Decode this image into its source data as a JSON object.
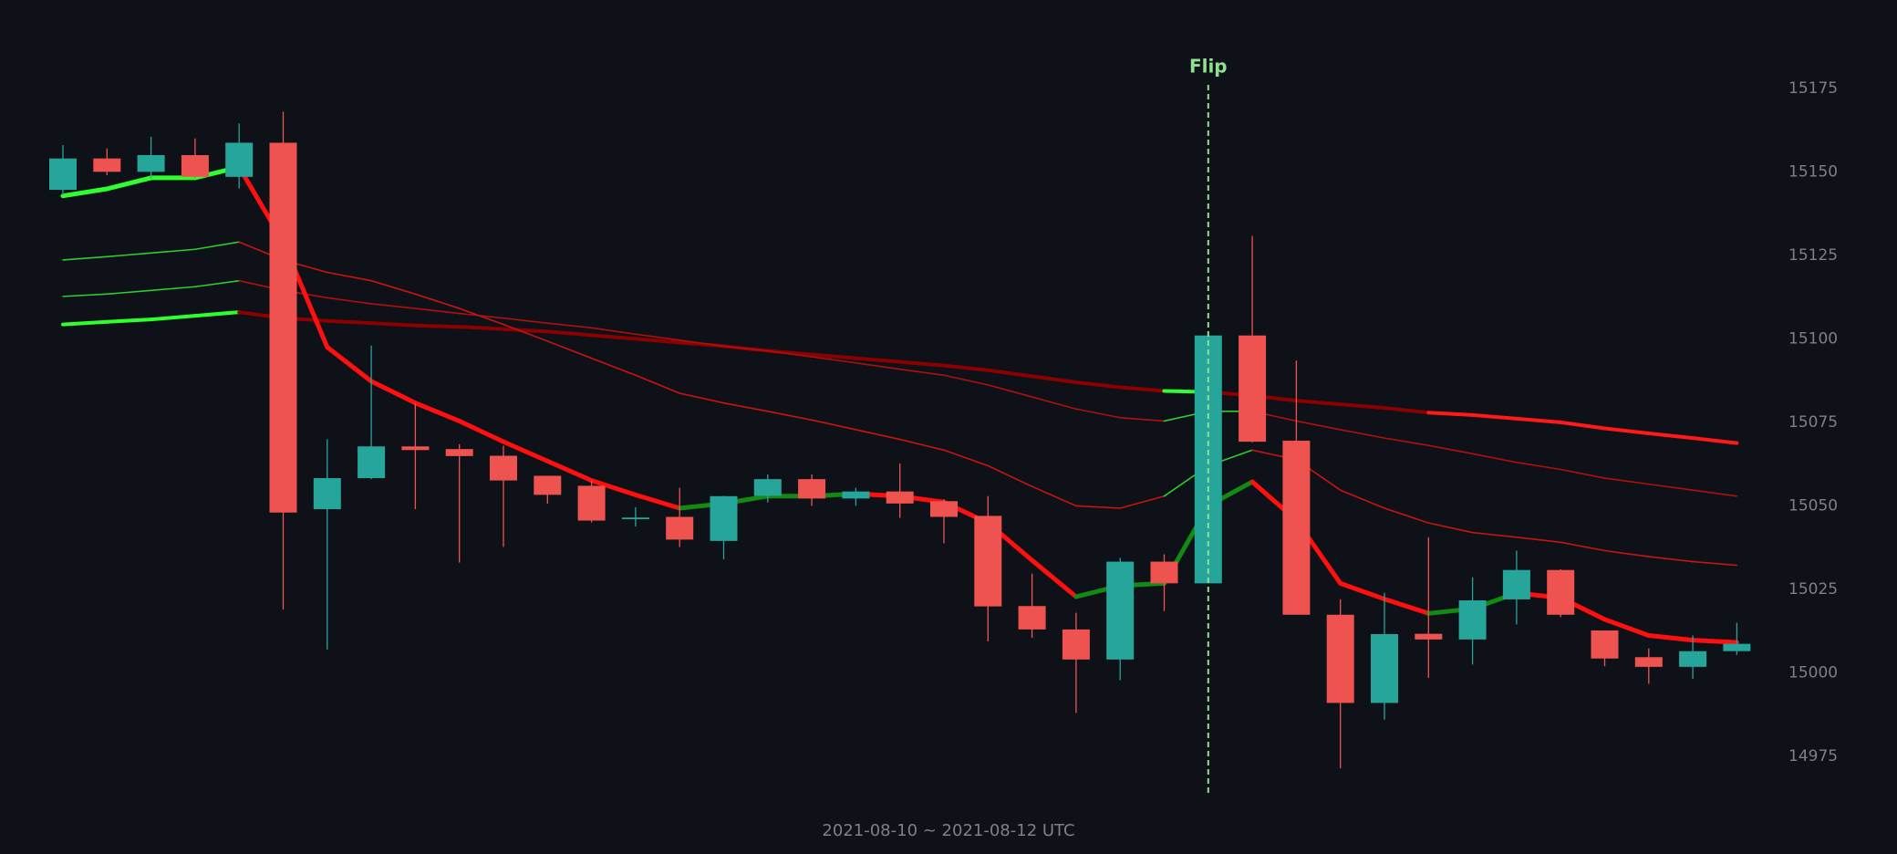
{
  "chart_data": {
    "type": "candlestick",
    "x_label": "2021-08-10 ~ 2021-08-12 UTC",
    "ylim": [
      14975,
      15175
    ],
    "yticks": [
      14975,
      15000,
      15025,
      15050,
      15075,
      15100,
      15125,
      15150,
      15175
    ],
    "up_color": "#26a69a",
    "down_color": "#ef5350",
    "signal_color": "#8fe08f",
    "open": [
      15144.6,
      15154,
      15150,
      15155,
      15148.5,
      15158.7,
      15049,
      15058.3,
      15067.8,
      15067,
      15065,
      15059,
      15056,
      15046,
      15046.7,
      15039.5,
      15053,
      15058,
      15052.2,
      15054.3,
      15051.4,
      15047,
      15020,
      15013,
      15004,
      15033.3,
      15026.8,
      15101,
      15069.5,
      15017.4,
      14991,
      15011.7,
      15010,
      15022,
      15030.8,
      15012.7,
      15004.7,
      15001.8,
      15006.5
    ],
    "high": [
      15158,
      15157,
      15160.5,
      15160,
      15164.5,
      15168,
      15070,
      15098,
      15080.8,
      15068.5,
      15068,
      15059,
      15057.6,
      15049.6,
      15055.4,
      15053,
      15059.4,
      15059.4,
      15055.4,
      15062.7,
      15052,
      15052.9,
      15029.7,
      15018,
      15034.4,
      15035.5,
      15101,
      15130.8,
      15093.5,
      15022,
      15024,
      15040.6,
      15028.6,
      15036.6,
      15031,
      15012.7,
      15007.3,
      15011.2,
      15015
    ],
    "low": [
      15143,
      15149,
      15148,
      15148,
      15145,
      15019,
      15007,
      15058,
      15049,
      15033,
      15037.7,
      15050.7,
      15045,
      15043.8,
      15037.7,
      15034,
      15051,
      15050,
      15050,
      15046.4,
      15038.8,
      15009.4,
      15010.5,
      14988,
      14997.8,
      15018.5,
      15026.8,
      15069,
      15017.4,
      14971.4,
      14986,
      14998.5,
      15002.5,
      15014.5,
      15016.7,
      15002,
      14996.7,
      14998.2,
      15005.4
    ],
    "close": [
      15154,
      15150,
      15155,
      15148.5,
      15158.7,
      15048,
      15058.3,
      15067.8,
      15066.7,
      15064.9,
      15057.6,
      15053.3,
      15045.6,
      15046.5,
      15039.9,
      15052.9,
      15058,
      15052.2,
      15054.3,
      15050.7,
      15046.7,
      15019.9,
      15013,
      15004,
      15033.3,
      15026.8,
      15101,
      15069.2,
      15017.4,
      14991,
      15011.6,
      15010,
      15021.7,
      15030.8,
      15017.4,
      15004.3,
      15001.8,
      15006.5,
      15008.7
    ],
    "signals": [
      null,
      null,
      null,
      null,
      null,
      null,
      null,
      null,
      null,
      null,
      null,
      null,
      null,
      null,
      null,
      null,
      null,
      null,
      null,
      null,
      null,
      null,
      null,
      null,
      null,
      null,
      "Flip",
      null,
      null,
      null,
      null,
      null,
      null,
      null,
      null,
      null,
      null,
      null,
      null
    ],
    "ribbon": [
      {
        "values": [
          15142.8,
          15144.9,
          15148.2,
          15148.2,
          15151.4,
          15129,
          15097.5,
          15087.3,
          15080.8,
          15075.4,
          15069.2,
          15063.4,
          15057.6,
          15053.3,
          15049.3,
          15050.7,
          15052.9,
          15052.9,
          15053.6,
          15052.9,
          15051.1,
          15044.9,
          15033.7,
          15022.8,
          15026.1,
          15026.8,
          15050,
          15057.2,
          15045.7,
          15026.8,
          15022.1,
          15017.8,
          15019.2,
          15023.9,
          15022.5,
          15016,
          15011.2,
          15009.8,
          15009.1
        ],
        "segment_colors": [
          "#2eff2e",
          "#2eff2e",
          "#2eff2e",
          "#2eff2e",
          "#ff1010",
          "#ff1010",
          "#ff1010",
          "#ff1010",
          "#ff1010",
          "#ff1010",
          "#ff1010",
          "#ff1010",
          "#ff1010",
          "#ff1010",
          "#138a13",
          "#138a13",
          "#138a13",
          "#138a13",
          "#ff1010",
          "#ff1010",
          "#ff1010",
          "#ff1010",
          "#ff1010",
          "#138a13",
          "#138a13",
          "#138a13",
          "#138a13",
          "#ff1010",
          "#ff1010",
          "#ff1010",
          "#ff1010",
          "#138a13",
          "#138a13",
          "#ff1010",
          "#ff1010",
          "#ff1010",
          "#ff1010",
          "#ff1010"
        ]
      },
      {
        "values": [
          15123.6,
          15124.6,
          15125.7,
          15126.8,
          15129,
          15123.6,
          15119.9,
          15117.4,
          15113.4,
          15109.1,
          15104.3,
          15099.3,
          15094.2,
          15089.1,
          15083.7,
          15080.8,
          15078.3,
          15075.7,
          15072.8,
          15069.9,
          15066.7,
          15062,
          15055.8,
          15050,
          15049.3,
          15052.9,
          15062,
          15066.7,
          15063.8,
          15054.7,
          15049.3,
          15044.9,
          15042,
          15040.6,
          15039.1,
          15036.6,
          15034.8,
          15033.3,
          15032.2
        ],
        "segment_colors": [
          "#2ecc2e",
          "#2ecc2e",
          "#2ecc2e",
          "#2ecc2e",
          "#c81414",
          "#c81414",
          "#c81414",
          "#c81414",
          "#c81414",
          "#c81414",
          "#c81414",
          "#c81414",
          "#c81414",
          "#c81414",
          "#c81414",
          "#c81414",
          "#c81414",
          "#c81414",
          "#c81414",
          "#c81414",
          "#c81414",
          "#c81414",
          "#c81414",
          "#c81414",
          "#c81414",
          "#2ecc2e",
          "#2ecc2e",
          "#c81414",
          "#c81414",
          "#c81414",
          "#c81414",
          "#c81414",
          "#c81414",
          "#c81414",
          "#c81414",
          "#c81414",
          "#c81414",
          "#c81414"
        ]
      },
      {
        "values": [
          15112.7,
          15113.4,
          15114.5,
          15115.6,
          15117.4,
          15114.5,
          15112.3,
          15110.5,
          15109.1,
          15107.6,
          15106.2,
          15104.7,
          15103.3,
          15101.4,
          15099.6,
          15097.8,
          15096.4,
          15094.6,
          15092.8,
          15090.9,
          15089.1,
          15086.2,
          15082.6,
          15079,
          15076.4,
          15075.4,
          15078.3,
          15078.3,
          15075.4,
          15072.8,
          15070.3,
          15068.1,
          15065.6,
          15063,
          15060.9,
          15058.3,
          15056.5,
          15054.7,
          15052.9
        ],
        "segment_colors": [
          "#2ecc2e",
          "#2ecc2e",
          "#2ecc2e",
          "#2ecc2e",
          "#b01010",
          "#b01010",
          "#b01010",
          "#b01010",
          "#b01010",
          "#b01010",
          "#b01010",
          "#b01010",
          "#b01010",
          "#b01010",
          "#b01010",
          "#b01010",
          "#b01010",
          "#b01010",
          "#b01010",
          "#b01010",
          "#b01010",
          "#b01010",
          "#b01010",
          "#b01010",
          "#b01010",
          "#2ecc2e",
          "#2ecc2e",
          "#b01010",
          "#b01010",
          "#b01010",
          "#b01010",
          "#b01010",
          "#b01010",
          "#b01010",
          "#b01010",
          "#b01010",
          "#b01010",
          "#b01010"
        ]
      },
      {
        "values": [
          15104.3,
          15105.1,
          15105.8,
          15106.9,
          15108,
          15106.2,
          15105.4,
          15104.7,
          15104,
          15103.6,
          15102.9,
          15102.2,
          15101.1,
          15100,
          15098.9,
          15097.8,
          15096.4,
          15095.3,
          15094.2,
          15093.1,
          15092,
          15090.6,
          15088.8,
          15087,
          15085.5,
          15084.4,
          15084.1,
          15083,
          15081.5,
          15080.4,
          15079.3,
          15077.9,
          15077.2,
          15076.1,
          15075,
          15073.2,
          15071.7,
          15070.3,
          15068.8
        ],
        "segment_colors": [
          "#2eff2e",
          "#2eff2e",
          "#2eff2e",
          "#2eff2e",
          "#8b0000",
          "#8b0000",
          "#8b0000",
          "#8b0000",
          "#8b0000",
          "#8b0000",
          "#8b0000",
          "#8b0000",
          "#8b0000",
          "#8b0000",
          "#8b0000",
          "#8b0000",
          "#8b0000",
          "#8b0000",
          "#8b0000",
          "#8b0000",
          "#8b0000",
          "#8b0000",
          "#8b0000",
          "#8b0000",
          "#8b0000",
          "#2eff2e",
          "#8b0000",
          "#8b0000",
          "#8b0000",
          "#8b0000",
          "#8b0000",
          "#ff1a1a",
          "#ff1a1a",
          "#ff1a1a",
          "#ff1a1a",
          "#ff1a1a",
          "#ff1a1a",
          "#ff1a1a"
        ]
      }
    ]
  }
}
